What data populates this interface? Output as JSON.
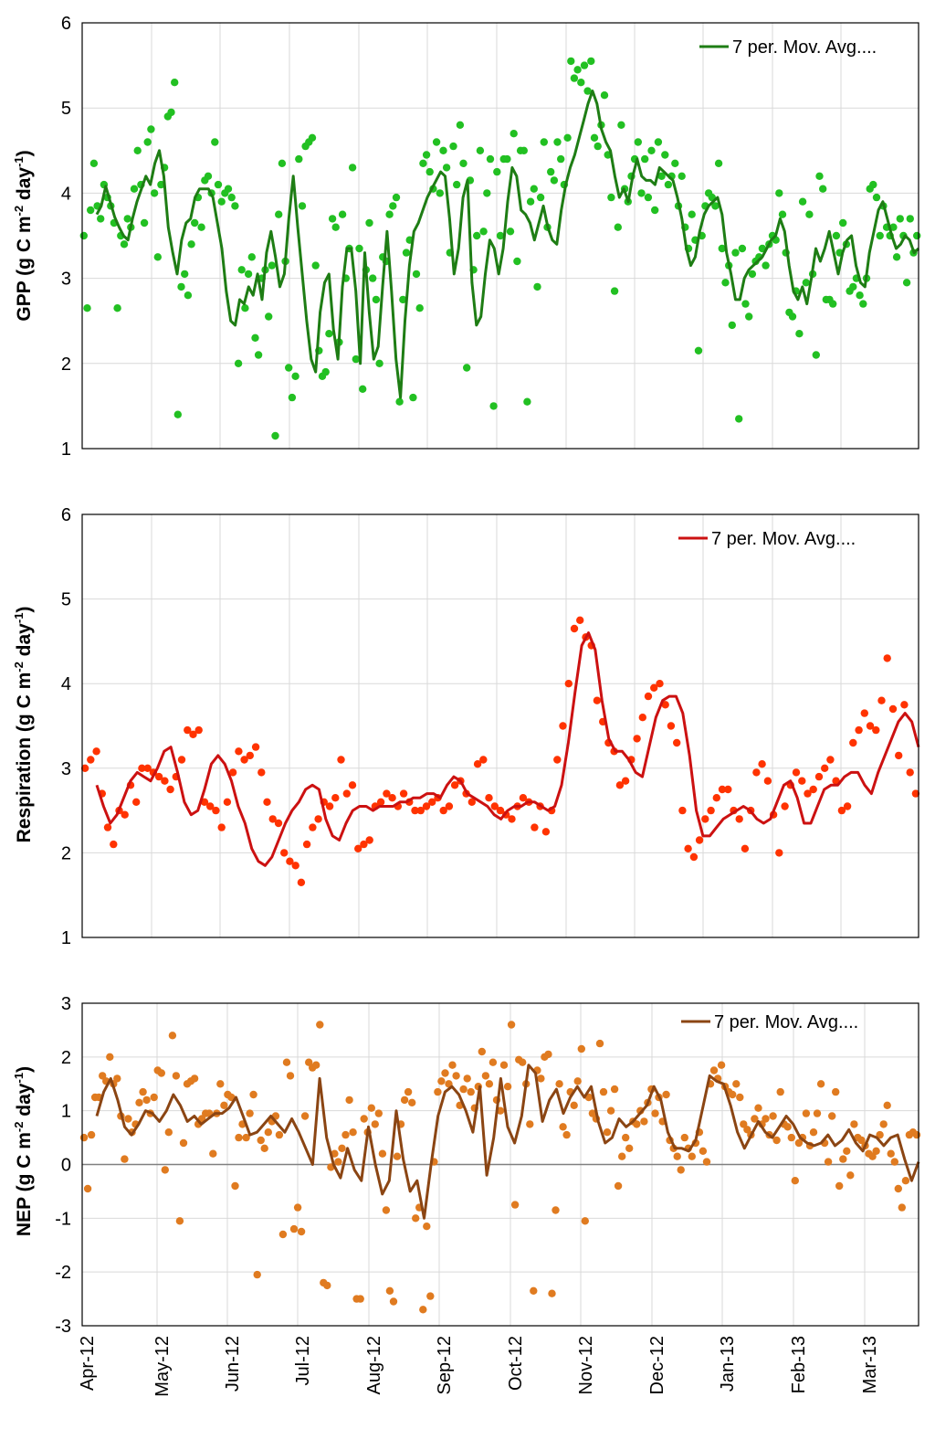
{
  "chart_data": [
    {
      "type": "scatter",
      "ylabel": "GPP (g C m",
      "ylabel_sup1": "-2",
      "ylabel_mid": " day",
      "ylabel_sup2": "-1",
      "ylabel_end": ")",
      "ylim": [
        1,
        6
      ],
      "yticks": [
        "1",
        "2",
        "3",
        "4",
        "5",
        "6"
      ],
      "legend": "7 per. Mov. Avg....",
      "colors": {
        "points": "#22c022",
        "line": "#1e7d14"
      },
      "grid": true,
      "x_start": "Apr-12",
      "x_end": "Mar-13",
      "line": [
        3.75,
        3.85,
        4.08,
        3.9,
        3.72,
        3.6,
        3.5,
        3.45,
        3.7,
        3.9,
        4.05,
        4.2,
        4.1,
        4.35,
        4.5,
        4.2,
        3.6,
        3.3,
        3.05,
        3.45,
        3.65,
        3.7,
        3.95,
        4.05,
        4.05,
        4.05,
        3.95,
        3.65,
        3.35,
        2.85,
        2.5,
        2.45,
        2.75,
        2.7,
        2.9,
        2.8,
        3.05,
        2.75,
        3.3,
        3.55,
        3.25,
        2.9,
        3.05,
        3.7,
        4.2,
        3.6,
        3.05,
        2.5,
        2.05,
        1.9,
        2.6,
        2.95,
        3.05,
        2.4,
        2.05,
        2.9,
        3.35,
        3.35,
        2.85,
        2.0,
        3.3,
        2.6,
        2.05,
        2.2,
        2.9,
        3.55,
        2.85,
        2.05,
        1.6,
        2.5,
        3.15,
        3.55,
        3.65,
        3.8,
        3.95,
        4.05,
        4.15,
        4.25,
        4.2,
        3.7,
        3.05,
        3.35,
        3.95,
        4.15,
        2.95,
        2.45,
        2.55,
        3.05,
        3.45,
        3.35,
        3.05,
        3.35,
        3.9,
        4.3,
        4.2,
        3.8,
        3.75,
        3.65,
        3.45,
        3.65,
        3.85,
        3.6,
        3.45,
        3.4,
        3.8,
        4.1,
        4.3,
        4.45,
        4.65,
        4.85,
        5.05,
        5.2,
        5.05,
        4.75,
        4.6,
        4.5,
        4.2,
        3.95,
        4.05,
        3.9,
        4.2,
        4.4,
        4.2,
        4.15,
        4.15,
        4.1,
        4.3,
        4.25,
        4.2,
        4.15,
        3.95,
        3.7,
        3.35,
        3.15,
        3.25,
        3.55,
        3.75,
        3.85,
        3.9,
        3.95,
        3.75,
        3.3,
        3.05,
        2.75,
        2.75,
        3.0,
        3.1,
        3.15,
        3.2,
        3.25,
        3.35,
        3.45,
        3.5,
        3.7,
        3.55,
        3.15,
        2.85,
        2.75,
        2.9,
        2.7,
        3.0,
        3.35,
        3.2,
        3.35,
        3.55,
        3.3,
        3.05,
        3.3,
        3.45,
        3.5,
        3.15,
        2.95,
        2.9,
        3.3,
        3.55,
        3.8,
        3.9,
        3.7,
        3.5,
        3.35,
        3.4,
        3.5,
        3.45,
        3.3,
        3.35
      ],
      "points": [
        3.5,
        2.65,
        3.8,
        4.35,
        3.85,
        3.7,
        4.1,
        3.95,
        3.85,
        3.65,
        2.65,
        3.5,
        3.4,
        3.7,
        3.6,
        4.05,
        4.5,
        4.1,
        3.65,
        4.6,
        4.75,
        4.0,
        3.25,
        4.1,
        4.3,
        4.9,
        4.95,
        5.3,
        1.4,
        2.9,
        3.05,
        2.8,
        3.4,
        3.65,
        3.95,
        3.6,
        4.15,
        4.2,
        4.0,
        4.6,
        4.1,
        3.9,
        4.0,
        4.05,
        3.95,
        3.85,
        2.0,
        3.1,
        2.65,
        3.05,
        3.25,
        2.3,
        2.1,
        3.0,
        3.1,
        2.55,
        3.15,
        1.15,
        3.75,
        4.35,
        3.2,
        1.95,
        1.6,
        1.85,
        4.4,
        3.85,
        4.55,
        4.6,
        4.65,
        3.15,
        2.15,
        1.85,
        1.9,
        2.35,
        3.7,
        3.6,
        2.25,
        3.75,
        3.0,
        3.35,
        4.3,
        2.05,
        3.35,
        1.7,
        3.1,
        3.65,
        3.0,
        2.75,
        2.0,
        3.25,
        3.2,
        3.75,
        3.85,
        3.95,
        1.55,
        2.75,
        3.3,
        3.45,
        1.6,
        3.05,
        2.65,
        4.35,
        4.45,
        4.25,
        4.05,
        4.6,
        4.0,
        4.5,
        4.3,
        3.3,
        4.55,
        4.1,
        4.8,
        4.35,
        1.95,
        4.15,
        3.1,
        3.5,
        4.5,
        3.55,
        4.0,
        4.4,
        1.5,
        4.25,
        3.5,
        4.4,
        4.4,
        3.55,
        4.7,
        3.2,
        4.5,
        4.5,
        1.55,
        3.9,
        4.05,
        2.9,
        3.95,
        4.6,
        3.6,
        4.25,
        4.15,
        4.6,
        4.4,
        4.1,
        4.65,
        5.55,
        5.35,
        5.45,
        5.3,
        5.5,
        5.2,
        5.55,
        4.65,
        4.55,
        4.8,
        5.15,
        4.45,
        3.95,
        2.85,
        3.6,
        4.8,
        4.05,
        3.9,
        4.2,
        4.4,
        4.6,
        4.0,
        4.4,
        3.95,
        4.5,
        3.8,
        4.6,
        4.2,
        4.45,
        4.1,
        4.2,
        4.35,
        3.85,
        4.2,
        3.6,
        3.35,
        3.75,
        3.45,
        2.15,
        3.5,
        3.85,
        4.0,
        3.95,
        3.85,
        4.35,
        3.35,
        2.95,
        3.15,
        2.45,
        3.3,
        1.35,
        3.35,
        2.7,
        2.55,
        3.05,
        3.2,
        3.25,
        3.35,
        3.15,
        3.4,
        3.5,
        3.45,
        4.0,
        3.75,
        3.3,
        2.6,
        2.55,
        2.85,
        2.35,
        3.9,
        2.95,
        3.75,
        3.05,
        2.1,
        4.2,
        4.05,
        2.75,
        2.75,
        2.7,
        3.5,
        3.3,
        3.65,
        3.4,
        2.85,
        2.9,
        3.0,
        2.8,
        2.7,
        3.0,
        4.05,
        4.1,
        3.95,
        3.5,
        3.85,
        3.6,
        3.5,
        3.6,
        3.25,
        3.7,
        3.5,
        2.95,
        3.7,
        3.3,
        3.5
      ]
    },
    {
      "type": "scatter",
      "ylabel": "Respiration (g C m",
      "ylabel_sup1": "-2",
      "ylabel_mid": " day",
      "ylabel_sup2": "-1",
      "ylabel_end": ")",
      "ylim": [
        1,
        6
      ],
      "yticks": [
        "1",
        "2",
        "3",
        "4",
        "5",
        "6"
      ],
      "legend": "7 per. Mov. Avg....",
      "colors": {
        "points": "#ff3300",
        "line": "#cc1111"
      },
      "grid": true,
      "x_start": "Apr-12",
      "x_end": "Mar-13",
      "line": [
        2.8,
        2.55,
        2.35,
        2.45,
        2.65,
        2.85,
        2.95,
        2.9,
        2.85,
        3.0,
        3.2,
        3.25,
        2.95,
        2.6,
        2.45,
        2.5,
        2.75,
        3.05,
        3.15,
        3.05,
        2.85,
        2.55,
        2.35,
        2.05,
        1.9,
        1.85,
        1.95,
        2.15,
        2.35,
        2.5,
        2.6,
        2.75,
        2.8,
        2.75,
        2.4,
        2.2,
        2.15,
        2.35,
        2.5,
        2.55,
        2.55,
        2.5,
        2.55,
        2.55,
        2.55,
        2.6,
        2.6,
        2.65,
        2.65,
        2.7,
        2.7,
        2.65,
        2.8,
        2.9,
        2.85,
        2.7,
        2.65,
        2.6,
        2.55,
        2.45,
        2.4,
        2.5,
        2.55,
        2.55,
        2.6,
        2.6,
        2.55,
        2.5,
        2.55,
        2.8,
        3.3,
        3.9,
        4.45,
        4.6,
        4.4,
        3.8,
        3.35,
        3.2,
        3.2,
        3.1,
        2.95,
        2.9,
        3.25,
        3.6,
        3.8,
        3.85,
        3.85,
        3.65,
        3.15,
        2.5,
        2.2,
        2.2,
        2.3,
        2.4,
        2.45,
        2.5,
        2.55,
        2.5,
        2.4,
        2.35,
        2.4,
        2.6,
        2.8,
        2.85,
        2.65,
        2.35,
        2.35,
        2.55,
        2.75,
        2.8,
        2.8,
        2.9,
        2.95,
        2.95,
        2.8,
        2.7,
        2.95,
        3.15,
        3.35,
        3.55,
        3.65,
        3.55,
        3.25
      ],
      "points": [
        3.0,
        3.1,
        3.2,
        2.7,
        2.3,
        2.1,
        2.5,
        2.45,
        2.8,
        2.6,
        3.0,
        3.0,
        2.95,
        2.9,
        2.85,
        2.75,
        2.9,
        3.1,
        3.45,
        3.4,
        3.45,
        2.6,
        2.55,
        2.5,
        2.3,
        2.6,
        2.95,
        3.2,
        3.1,
        3.15,
        3.25,
        2.95,
        2.6,
        2.4,
        2.35,
        2.0,
        1.9,
        1.85,
        1.65,
        2.1,
        2.3,
        2.4,
        2.6,
        2.55,
        2.65,
        3.1,
        2.7,
        2.8,
        2.05,
        2.1,
        2.15,
        2.55,
        2.6,
        2.7,
        2.65,
        2.55,
        2.7,
        2.6,
        2.5,
        2.5,
        2.55,
        2.6,
        2.65,
        2.5,
        2.55,
        2.8,
        2.85,
        2.7,
        2.6,
        3.05,
        3.1,
        2.65,
        2.55,
        2.5,
        2.45,
        2.4,
        2.55,
        2.65,
        2.6,
        2.3,
        2.55,
        2.25,
        2.5,
        3.1,
        3.5,
        4.0,
        4.65,
        4.75,
        4.55,
        4.45,
        3.8,
        3.55,
        3.3,
        3.2,
        2.8,
        2.85,
        3.1,
        3.35,
        3.6,
        3.85,
        3.95,
        4.0,
        3.75,
        3.5,
        3.3,
        2.5,
        2.05,
        1.95,
        2.15,
        2.4,
        2.5,
        2.65,
        2.75,
        2.75,
        2.5,
        2.4,
        2.05,
        2.5,
        2.95,
        3.05,
        2.85,
        2.45,
        2.0,
        2.55,
        2.8,
        2.95,
        2.85,
        2.7,
        2.75,
        2.9,
        3.0,
        3.1,
        2.85,
        2.5,
        2.55,
        3.3,
        3.45,
        3.65,
        3.5,
        3.45,
        3.8,
        4.3,
        3.7,
        3.15,
        3.75,
        2.95,
        2.7
      ]
    },
    {
      "type": "scatter",
      "ylabel": "NEP (g C m",
      "ylabel_sup1": "-2",
      "ylabel_mid": " day",
      "ylabel_sup2": "-1",
      "ylabel_end": ")",
      "ylim": [
        -3,
        3
      ],
      "yticks": [
        "-3",
        "-2",
        "-1",
        "0",
        "1",
        "2",
        "3"
      ],
      "legend": "7 per. Mov. Avg....",
      "colors": {
        "points": "#e07b20",
        "line": "#8b4513"
      },
      "grid": true,
      "x_start": "Apr-12",
      "x_end": "Mar-13",
      "xticks": [
        "Apr-12",
        "May-12",
        "Jun-12",
        "Jul-12",
        "Aug-12",
        "Sep-12",
        "Oct-12",
        "Nov-12",
        "Dec-12",
        "Jan-13",
        "Feb-13",
        "Mar-13"
      ],
      "line": [
        0.9,
        1.35,
        1.6,
        1.2,
        0.7,
        0.55,
        0.75,
        1.0,
        0.95,
        0.8,
        1.0,
        1.3,
        1.1,
        0.8,
        0.9,
        0.75,
        0.85,
        0.95,
        0.95,
        1.05,
        1.25,
        0.9,
        0.55,
        0.6,
        0.75,
        0.9,
        0.75,
        0.6,
        0.85,
        0.6,
        0.3,
        0.0,
        1.6,
        0.5,
        0.0,
        -0.25,
        0.3,
        -0.1,
        -0.3,
        0.7,
        0.0,
        -0.55,
        -0.3,
        1.0,
        0.1,
        -0.5,
        -0.3,
        -1.0,
        0.0,
        0.9,
        1.35,
        1.45,
        1.3,
        1.0,
        0.6,
        1.45,
        -0.2,
        0.5,
        1.6,
        0.7,
        0.4,
        0.9,
        1.85,
        1.7,
        0.8,
        1.2,
        1.4,
        0.95,
        1.25,
        1.45,
        1.25,
        1.45,
        0.8,
        0.4,
        0.5,
        0.85,
        0.7,
        0.8,
        0.95,
        1.1,
        1.45,
        1.2,
        0.6,
        0.3,
        0.3,
        0.25,
        0.45,
        1.05,
        1.65,
        1.55,
        1.5,
        1.1,
        0.6,
        0.3,
        0.55,
        0.8,
        0.6,
        0.5,
        0.7,
        0.9,
        0.75,
        0.5,
        0.4,
        0.35,
        0.4,
        0.55,
        0.35,
        0.45,
        0.65,
        0.4,
        0.25,
        0.55,
        0.5,
        0.35,
        0.5,
        0.55,
        0.1,
        -0.3,
        0.05
      ],
      "points": [
        0.5,
        -0.45,
        0.55,
        1.25,
        1.25,
        1.65,
        1.55,
        2.0,
        1.5,
        1.6,
        0.9,
        0.1,
        0.85,
        0.6,
        0.75,
        1.15,
        1.35,
        1.2,
        0.95,
        1.25,
        1.75,
        1.7,
        -0.1,
        0.6,
        2.4,
        1.65,
        -1.05,
        0.4,
        1.5,
        1.55,
        1.6,
        0.75,
        0.85,
        0.95,
        0.95,
        0.2,
        0.95,
        1.5,
        1.1,
        1.3,
        1.25,
        -0.4,
        0.5,
        0.75,
        0.5,
        0.95,
        1.3,
        -2.05,
        0.45,
        0.3,
        0.6,
        0.8,
        0.9,
        0.55,
        -1.3,
        1.9,
        1.65,
        -1.2,
        -0.8,
        -1.25,
        0.9,
        1.9,
        1.8,
        1.85,
        2.6,
        -2.2,
        -2.25,
        -0.05,
        0.2,
        0.05,
        0.3,
        0.55,
        1.2,
        0.6,
        -2.5,
        -2.5,
        0.85,
        0.6,
        1.05,
        0.75,
        0.95,
        0.2,
        -0.85,
        -2.35,
        -2.55,
        0.15,
        0.75,
        1.2,
        1.35,
        1.15,
        -1.0,
        -0.8,
        -2.7,
        -1.15,
        -2.45,
        0.05,
        1.35,
        1.55,
        1.7,
        1.5,
        1.85,
        1.65,
        1.1,
        1.4,
        1.6,
        1.35,
        1.05,
        1.45,
        2.1,
        1.65,
        1.5,
        1.9,
        1.2,
        1.0,
        1.85,
        1.45,
        2.6,
        -0.75,
        1.95,
        1.9,
        1.5,
        0.75,
        -2.35,
        1.75,
        1.6,
        2.0,
        2.05,
        -2.4,
        -0.85,
        1.5,
        0.7,
        0.55,
        1.35,
        1.1,
        1.55,
        2.15,
        -1.05,
        1.25,
        0.95,
        0.85,
        2.25,
        1.35,
        0.6,
        1.0,
        1.4,
        -0.4,
        0.15,
        0.5,
        0.3,
        0.8,
        0.75,
        1.0,
        0.8,
        1.15,
        1.4,
        0.95,
        1.25,
        0.8,
        1.3,
        0.45,
        0.3,
        0.15,
        -0.1,
        0.5,
        0.3,
        0.15,
        0.4,
        0.6,
        0.25,
        0.05,
        1.5,
        1.75,
        1.6,
        1.85,
        1.45,
        1.35,
        1.3,
        1.5,
        1.25,
        0.75,
        0.65,
        0.55,
        0.85,
        1.05,
        0.75,
        0.85,
        0.55,
        0.9,
        0.45,
        1.35,
        0.75,
        0.7,
        0.5,
        -0.3,
        0.4,
        0.5,
        0.95,
        0.35,
        0.6,
        0.95,
        1.5,
        0.4,
        0.05,
        0.9,
        1.35,
        -0.4,
        0.1,
        0.25,
        -0.2,
        0.75,
        0.5,
        0.45,
        0.35,
        0.2,
        0.15,
        0.25,
        0.55,
        0.75,
        1.1,
        0.2,
        0.05,
        -0.45,
        -0.8,
        -0.3,
        0.55,
        0.6,
        0.55
      ]
    }
  ]
}
